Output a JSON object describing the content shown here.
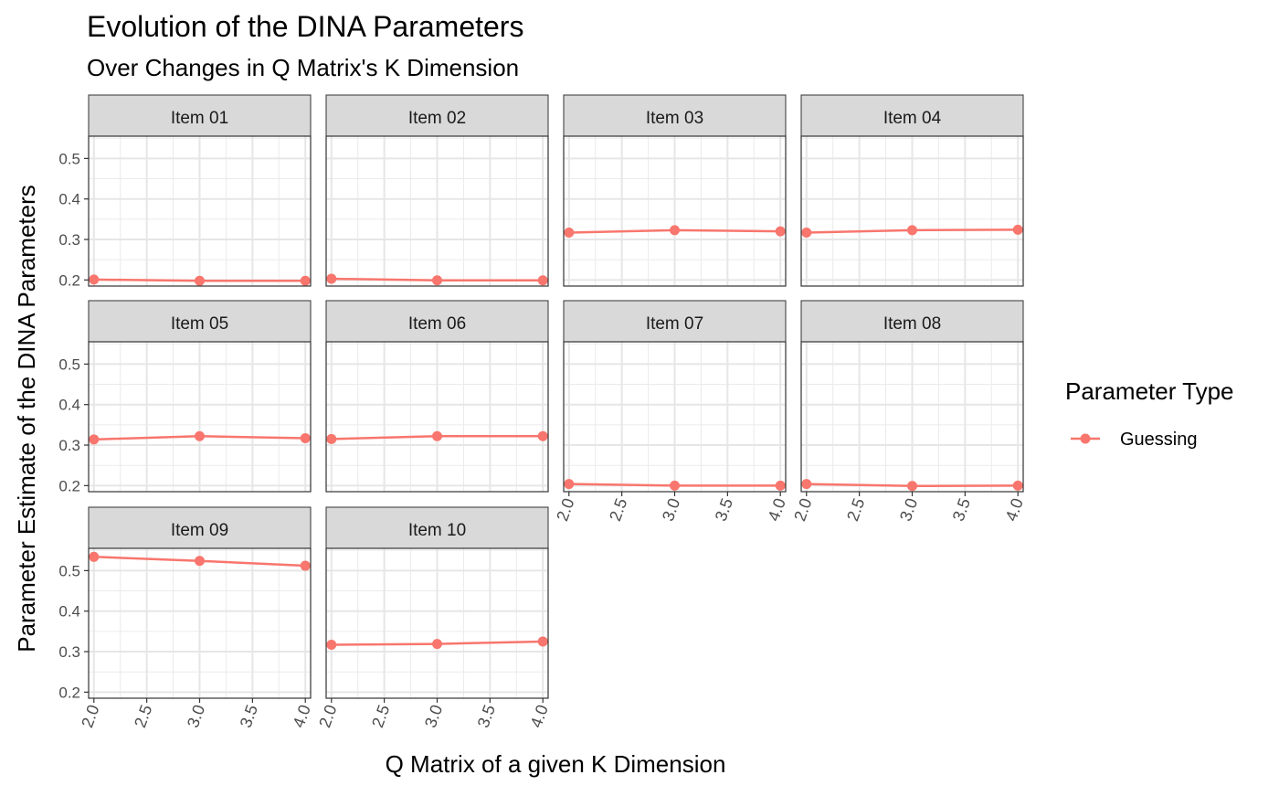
{
  "chart_data": {
    "type": "line",
    "title": "Evolution of the DINA Parameters",
    "subtitle": "Over Changes in Q Matrix's K Dimension",
    "xlabel": "Q Matrix of a given K Dimension",
    "ylabel": "Parameter Estimate of the DINA Parameters",
    "xlim": [
      1.95,
      4.05
    ],
    "ylim": [
      0.185,
      0.555
    ],
    "x_ticks": [
      "2.0",
      "2.5",
      "3.0",
      "3.5",
      "4.0"
    ],
    "x_tick_values": [
      2.0,
      2.5,
      3.0,
      3.5,
      4.0
    ],
    "y_ticks": [
      "0.2",
      "0.3",
      "0.4",
      "0.5"
    ],
    "y_tick_values": [
      0.2,
      0.3,
      0.4,
      0.5
    ],
    "x": [
      2,
      3,
      4
    ],
    "grid": true,
    "legend": {
      "title": "Parameter Type",
      "position": "right",
      "entries": [
        {
          "name": "Guessing",
          "color": "#F8766D"
        }
      ]
    },
    "facets": [
      {
        "label": "Item 01",
        "series": [
          {
            "name": "Guessing",
            "values": [
              0.201,
              0.198,
              0.198
            ]
          }
        ]
      },
      {
        "label": "Item 02",
        "series": [
          {
            "name": "Guessing",
            "values": [
              0.203,
              0.199,
              0.199
            ]
          }
        ]
      },
      {
        "label": "Item 03",
        "series": [
          {
            "name": "Guessing",
            "values": [
              0.317,
              0.323,
              0.32
            ]
          }
        ]
      },
      {
        "label": "Item 04",
        "series": [
          {
            "name": "Guessing",
            "values": [
              0.317,
              0.323,
              0.324
            ]
          }
        ]
      },
      {
        "label": "Item 05",
        "series": [
          {
            "name": "Guessing",
            "values": [
              0.314,
              0.322,
              0.317
            ]
          }
        ]
      },
      {
        "label": "Item 06",
        "series": [
          {
            "name": "Guessing",
            "values": [
              0.315,
              0.322,
              0.322
            ]
          }
        ]
      },
      {
        "label": "Item 07",
        "series": [
          {
            "name": "Guessing",
            "values": [
              0.204,
              0.2,
              0.2
            ]
          }
        ]
      },
      {
        "label": "Item 08",
        "series": [
          {
            "name": "Guessing",
            "values": [
              0.204,
              0.199,
              0.2
            ]
          }
        ]
      },
      {
        "label": "Item 09",
        "series": [
          {
            "name": "Guessing",
            "values": [
              0.534,
              0.524,
              0.512
            ]
          }
        ]
      },
      {
        "label": "Item 10",
        "series": [
          {
            "name": "Guessing",
            "values": [
              0.317,
              0.319,
              0.325
            ]
          }
        ]
      }
    ]
  }
}
